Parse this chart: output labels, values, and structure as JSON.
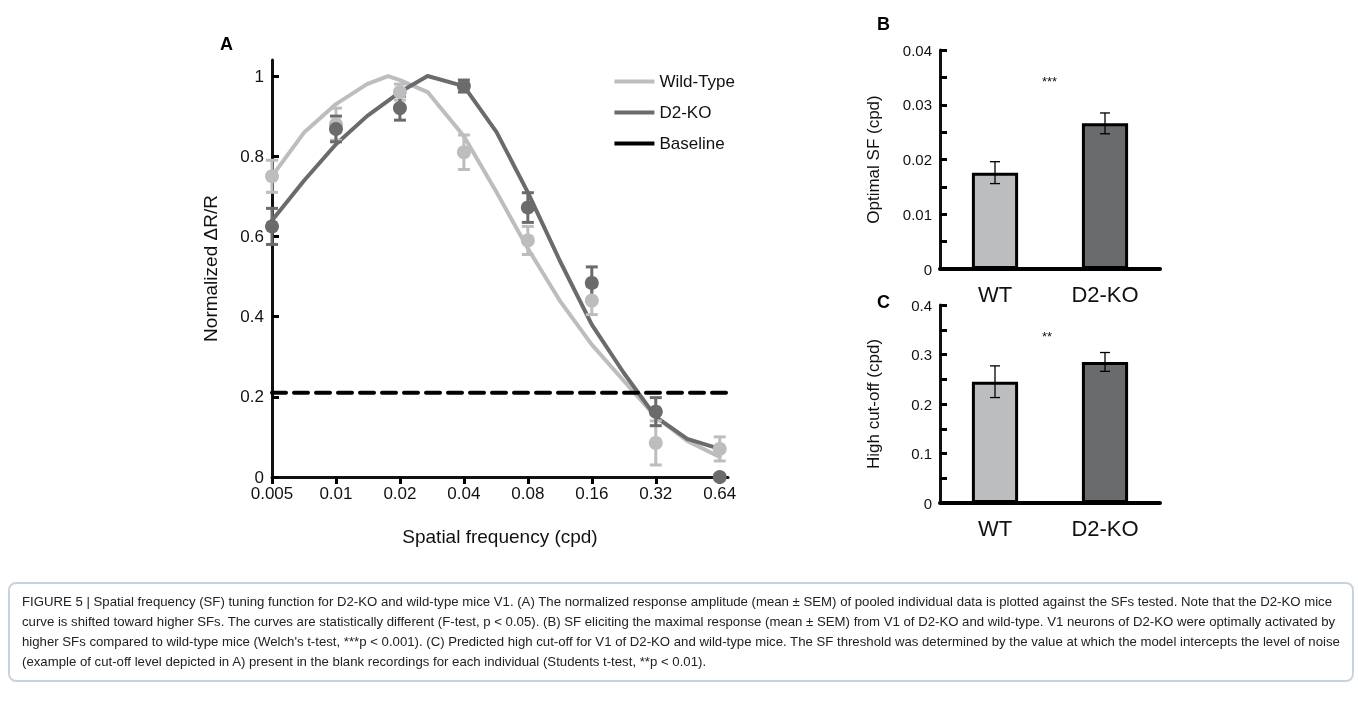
{
  "chart_data": [
    {
      "type": "line",
      "title": "A",
      "xlabel": "Spatial frequency (cpd)",
      "ylabel": "Normalized ΔR/R",
      "log": "x",
      "xlim": [
        0.005,
        0.7
      ],
      "xticks": [
        0.005,
        0.01,
        0.02,
        0.04,
        0.08,
        0.16,
        0.32,
        0.64
      ],
      "ylim": [
        0,
        1.04
      ],
      "yticks": [
        0,
        0.2,
        0.4,
        0.6,
        0.8,
        1
      ],
      "grid": false,
      "legend": "top right",
      "annotations": [
        "FIGURE 5 | Spatial frequency (SF) tuning function for D2-KO and wild-type mice V1. (A) The normalized response amplitude (mean ± SEM) of pooled individual data is plotted against the SFs tested. Note that the D2-KO mice curve is shifted toward higher SFs. The curves are statistically different (F-test, p < 0.05). (B) SF eliciting the maximal response (mean ± SEM) from V1 of D2-KO and wild-type. V1 neurons of D2-KO were optimally activated by higher SFs compared to wild-type mice (Welch's t-test, ***p < 0.001). (C) Predicted high cut-off for V1 of D2-KO and wild-type mice. The SF threshold was determined by the value at which the model intercepts the level of noise (example of cut-off level depicted in A) present in the blank recordings for each individual (Students t-test, **p < 0.01)."
      ],
      "series": [
        {
          "name": "Wild-Type",
          "type": "line",
          "color": "#bcbdbf",
          "marker": "none",
          "line_style": "solid",
          "x": [
            0.005,
            0.0071,
            0.01,
            0.014,
            0.0176,
            0.02,
            0.027,
            0.04,
            0.057,
            0.08,
            0.113,
            0.16,
            0.226,
            0.32,
            0.45,
            0.64
          ],
          "values": [
            0.75,
            0.86,
            0.93,
            0.98,
            1.0,
            0.99,
            0.96,
            0.85,
            0.71,
            0.57,
            0.44,
            0.33,
            0.24,
            0.15,
            0.09,
            0.05
          ]
        },
        {
          "name": "D2-KO",
          "type": "line",
          "color": "#6a6b6d",
          "marker": "none",
          "line_style": "solid",
          "x": [
            0.005,
            0.0071,
            0.01,
            0.014,
            0.02,
            0.027,
            0.04,
            0.057,
            0.08,
            0.113,
            0.16,
            0.226,
            0.32,
            0.45,
            0.64
          ],
          "values": [
            0.64,
            0.74,
            0.83,
            0.9,
            0.96,
            1.0,
            0.975,
            0.86,
            0.71,
            0.54,
            0.38,
            0.26,
            0.15,
            0.095,
            0.07
          ]
        },
        {
          "name": "Baseline",
          "type": "line",
          "color": "#000000",
          "marker": "none",
          "line_style": "dashed",
          "x": [
            0.005,
            0.7
          ],
          "values": [
            0.21,
            0.21
          ]
        },
        {
          "type": "scatter",
          "color": "#bcbdbf",
          "marker": "circle",
          "x": [
            0.005,
            0.01,
            0.02,
            0.04,
            0.08,
            0.16,
            0.32,
            0.64
          ],
          "values": [
            0.75,
            0.88,
            0.96,
            0.81,
            0.59,
            0.44,
            0.085,
            0.07
          ],
          "errors": [
            0.04,
            0.04,
            0.02,
            0.043,
            0.035,
            0.035,
            0.055,
            0.03
          ]
        },
        {
          "type": "scatter",
          "color": "#6a6b6d",
          "marker": "circle",
          "x": [
            0.005,
            0.01,
            0.02,
            0.04,
            0.08,
            0.16,
            0.32,
            0.64
          ],
          "values": [
            0.625,
            0.868,
            0.92,
            0.975,
            0.672,
            0.484,
            0.163,
            0.0
          ],
          "errors": [
            0.045,
            0.032,
            0.03,
            0.015,
            0.037,
            0.04,
            0.035,
            null
          ]
        }
      ]
    },
    {
      "type": "bar",
      "title": "B",
      "ylabel": "Optimal SF (cpd)",
      "categories": [
        "WT",
        "D2-KO"
      ],
      "values": [
        0.0176,
        0.0266
      ],
      "colors": [
        "#bcbdbf",
        "#6a6b6d"
      ],
      "errors": [
        0.002,
        0.0019
      ],
      "ylim": [
        0,
        0.04
      ],
      "yticks": [
        0,
        {
          "value": 0.005,
          "label": null
        },
        0.01,
        {
          "value": 0.015,
          "label": null
        },
        0.02,
        {
          "value": 0.025,
          "label": null
        },
        0.03,
        {
          "value": 0.035,
          "label": null
        },
        0.04
      ],
      "grid": false,
      "legend": false,
      "annotations": [
        "***"
      ]
    },
    {
      "type": "bar",
      "title": "C",
      "ylabel": "High cut-off (cpd)",
      "categories": [
        "WT",
        "D2-KO"
      ],
      "values": [
        0.245,
        0.285
      ],
      "colors": [
        "#bcbdbf",
        "#6a6b6d"
      ],
      "errors": [
        0.032,
        0.019
      ],
      "ylim": [
        0,
        0.4
      ],
      "yticks": [
        0,
        {
          "value": 0.05,
          "label": null
        },
        0.1,
        {
          "value": 0.15,
          "label": null
        },
        0.2,
        {
          "value": 0.25,
          "label": null
        },
        0.3,
        {
          "value": 0.35,
          "label": null
        },
        0.4
      ],
      "grid": false,
      "legend": false,
      "annotations": [
        "**"
      ]
    }
  ]
}
